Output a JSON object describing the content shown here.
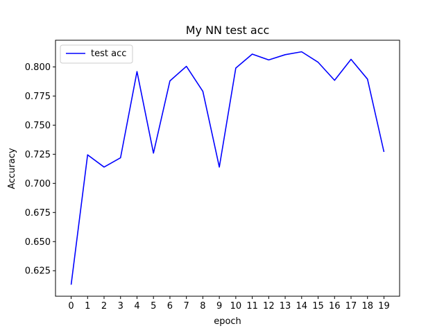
{
  "chart_data": {
    "type": "line",
    "title": "My NN test acc",
    "xlabel": "epoch",
    "ylabel": "Accuracy",
    "x": [
      0,
      1,
      2,
      3,
      4,
      5,
      6,
      7,
      8,
      9,
      10,
      11,
      12,
      13,
      14,
      15,
      16,
      17,
      18,
      19
    ],
    "series": [
      {
        "name": "test acc",
        "color": "#0000ff",
        "values": [
          0.613,
          0.7245,
          0.714,
          0.722,
          0.796,
          0.726,
          0.788,
          0.8005,
          0.779,
          0.714,
          0.799,
          0.811,
          0.806,
          0.8105,
          0.813,
          0.804,
          0.7885,
          0.8065,
          0.7895,
          0.727
        ]
      }
    ],
    "x_ticks": [
      "0",
      "1",
      "2",
      "3",
      "4",
      "5",
      "6",
      "7",
      "8",
      "9",
      "10",
      "11",
      "12",
      "13",
      "14",
      "15",
      "16",
      "17",
      "18",
      "19"
    ],
    "y_ticks": [
      "0.625",
      "0.650",
      "0.675",
      "0.700",
      "0.725",
      "0.750",
      "0.775",
      "0.800"
    ],
    "y_tick_values": [
      0.625,
      0.65,
      0.675,
      0.7,
      0.725,
      0.75,
      0.775,
      0.8
    ],
    "xlim": [
      -0.95,
      19.95
    ],
    "ylim": [
      0.6031,
      0.8229
    ],
    "grid": false,
    "legend": "upper-left"
  }
}
